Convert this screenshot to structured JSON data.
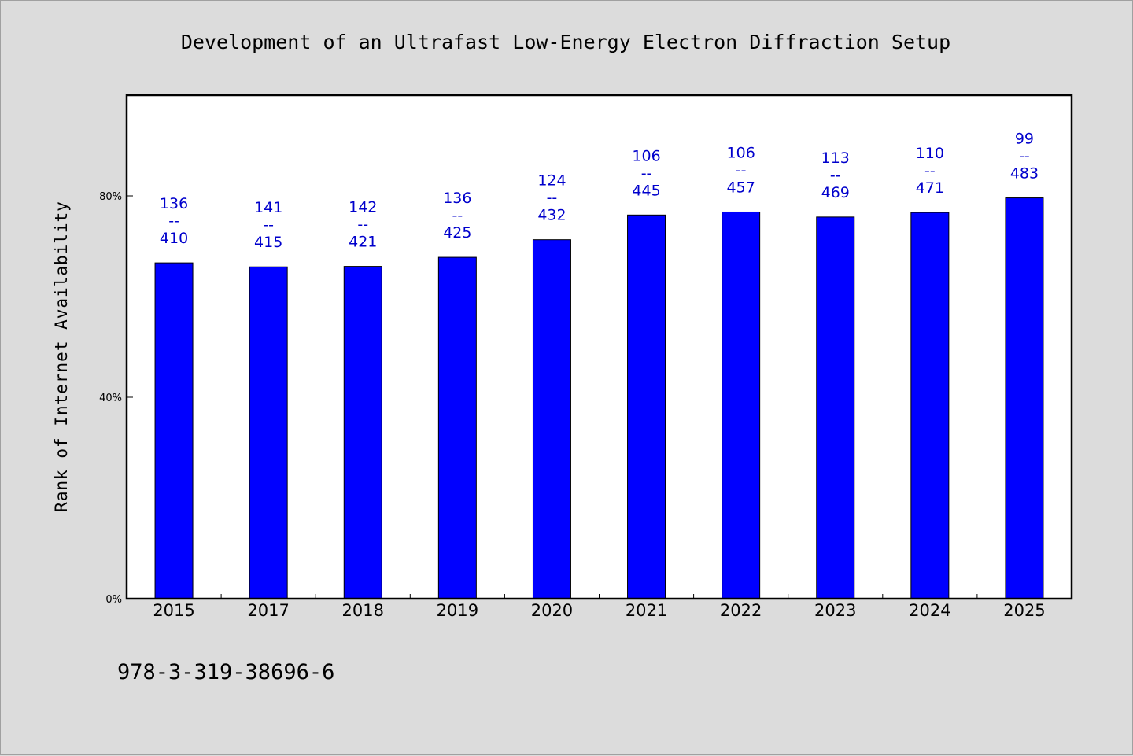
{
  "chart_data": {
    "type": "bar",
    "title": "Development of an Ultrafast Low-Energy Electron Diffraction Setup",
    "xlabel": "",
    "ylabel": "Rank of Internet Availability",
    "categories": [
      "2015",
      "2017",
      "2018",
      "2019",
      "2020",
      "2021",
      "2022",
      "2023",
      "2024",
      "2025"
    ],
    "values": [
      66.7,
      65.9,
      66.0,
      67.8,
      71.3,
      76.2,
      76.8,
      75.8,
      76.7,
      79.6
    ],
    "labels_top": [
      "136",
      "141",
      "142",
      "136",
      "124",
      "106",
      "106",
      "113",
      "110",
      "99"
    ],
    "labels_bottom": [
      "410",
      "415",
      "421",
      "425",
      "432",
      "445",
      "457",
      "469",
      "471",
      "483"
    ],
    "label_separator": "--",
    "ylim": [
      0,
      100
    ],
    "yticks": [
      0,
      40,
      80
    ],
    "ytick_labels": [
      "0%",
      "40%",
      "80%"
    ],
    "grid": false,
    "bar_color": "#0000ff",
    "label_color": "#0000cc"
  },
  "footer": {
    "isbn": "978-3-319-38696-6"
  },
  "colors": {
    "background": "#dcdcdc",
    "plot_area": "#ffffff"
  }
}
